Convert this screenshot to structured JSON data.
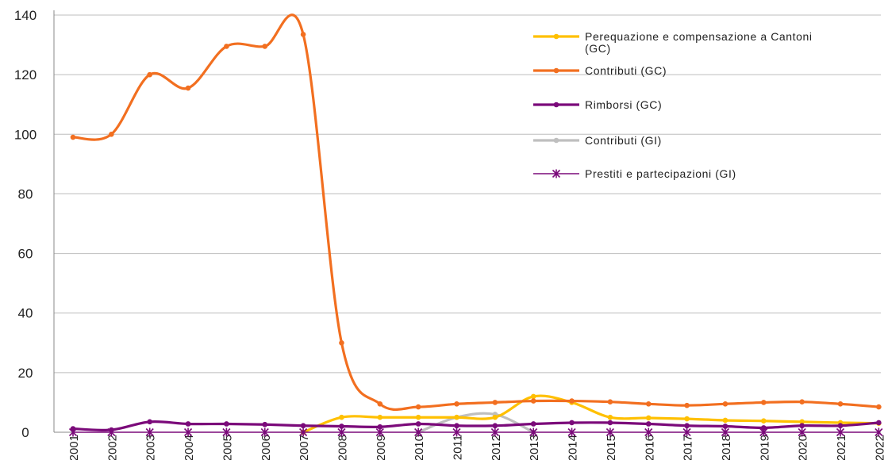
{
  "chart_data": {
    "type": "line",
    "title": "",
    "xlabel": "",
    "ylabel": "",
    "ylim": [
      0,
      140
    ],
    "yticks": [
      0,
      20,
      40,
      60,
      80,
      100,
      120,
      140
    ],
    "grid": true,
    "legend_position": "top-right",
    "categories": [
      "2001",
      "2002",
      "2003",
      "2004",
      "2005",
      "2006",
      "2007",
      "2008",
      "2009",
      "2010",
      "2011",
      "2012",
      "2013",
      "2014",
      "2015",
      "2016",
      "2017",
      "2018",
      "2019",
      "2020",
      "2021",
      "2022"
    ],
    "series": [
      {
        "name_lines": [
          "Perequazione e compensazione a Cantoni",
          "(GC)"
        ],
        "color": "#ffc000",
        "marker": "dot",
        "values": [
          null,
          null,
          null,
          null,
          null,
          null,
          0,
          5,
          5,
          5,
          5,
          5,
          12,
          10,
          5,
          4.8,
          4.5,
          4,
          3.8,
          3.5,
          3.2,
          3
        ]
      },
      {
        "name_lines": [
          "Contributi (GC)"
        ],
        "color": "#f26f20",
        "marker": "dot",
        "values": [
          99,
          100,
          120,
          115.5,
          129.5,
          129.5,
          133.5,
          30,
          9.5,
          8.5,
          9.5,
          10,
          10.5,
          10.5,
          10.2,
          9.5,
          9,
          9.5,
          10,
          10.2,
          9.5,
          8.5
        ]
      },
      {
        "name_lines": [
          "Rimborsi (GC)"
        ],
        "color": "#7b0a7a",
        "marker": "dot",
        "values": [
          1.2,
          0.8,
          3.5,
          2.8,
          2.8,
          2.6,
          2.2,
          2,
          1.8,
          2.8,
          2.2,
          2.2,
          2.8,
          3.2,
          3.2,
          2.8,
          2.2,
          2,
          1.5,
          2.2,
          2.2,
          3.2
        ]
      },
      {
        "name_lines": [
          "Contributi (GI)"
        ],
        "color": "#bfbfbf",
        "marker": "dot",
        "values": [
          null,
          null,
          null,
          null,
          null,
          null,
          null,
          null,
          null,
          0,
          5,
          6,
          0,
          null,
          null,
          null,
          null,
          null,
          null,
          null,
          null,
          null
        ]
      },
      {
        "name_lines": [
          "Prestiti e partecipazioni (GI)"
        ],
        "color": "#7b0a7a",
        "marker": "star",
        "values": [
          0,
          0,
          0,
          0,
          0,
          0,
          0,
          0,
          0,
          0,
          0,
          0,
          0,
          0,
          0,
          0,
          0,
          0,
          0,
          0,
          0,
          0
        ]
      }
    ]
  }
}
